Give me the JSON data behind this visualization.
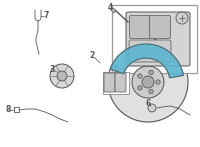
{
  "bg_color": "#ffffff",
  "highlight_color": "#5ab4cf",
  "line_color": "#555555",
  "border_color": "#999999",
  "fig_width": 2.0,
  "fig_height": 1.47,
  "dpi": 100
}
